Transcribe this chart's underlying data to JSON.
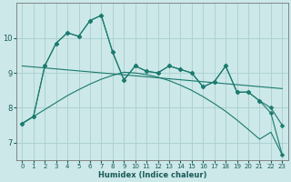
{
  "xlabel": "Humidex (Indice chaleur)",
  "x_ticks": [
    0,
    1,
    2,
    3,
    4,
    5,
    6,
    7,
    8,
    9,
    10,
    11,
    12,
    13,
    14,
    15,
    16,
    17,
    18,
    19,
    20,
    21,
    22,
    23
  ],
  "y_ticks": [
    7,
    8,
    9,
    10
  ],
  "xlim": [
    -0.5,
    23.5
  ],
  "ylim": [
    6.5,
    11.0
  ],
  "bg_color": "#cce8e8",
  "grid_color": "#aacece",
  "line_color": "#1a7a6e",
  "lines": [
    {
      "x": [
        0,
        1,
        2,
        3,
        4,
        5,
        6,
        7,
        8,
        9,
        10,
        11,
        12,
        13,
        14,
        15,
        16,
        17,
        18,
        19,
        20,
        21,
        22,
        23
      ],
      "y": [
        7.55,
        7.75,
        9.2,
        9.85,
        10.15,
        10.05,
        10.5,
        10.65,
        9.6,
        8.8,
        9.2,
        9.05,
        9.0,
        9.2,
        9.1,
        9.0,
        8.6,
        8.75,
        9.2,
        8.45,
        8.45,
        8.2,
        8.0,
        7.5
      ],
      "marker": "D",
      "markersize": 2.5
    },
    {
      "x": [
        0,
        1,
        2,
        3,
        4,
        5,
        6,
        7,
        8,
        9,
        10,
        11,
        12,
        13,
        14,
        15,
        16,
        17,
        18,
        19,
        20,
        21,
        22,
        23
      ],
      "y": [
        7.55,
        7.75,
        9.2,
        9.85,
        10.15,
        10.05,
        10.5,
        10.65,
        9.6,
        8.8,
        9.2,
        9.05,
        9.0,
        9.2,
        9.1,
        9.0,
        8.6,
        8.75,
        9.2,
        8.45,
        8.45,
        8.2,
        7.85,
        6.65
      ],
      "marker": "D",
      "markersize": 2.5
    },
    {
      "x": [
        0,
        23
      ],
      "y": [
        9.2,
        8.55
      ],
      "marker": null,
      "markersize": 0
    },
    {
      "x": [
        0,
        1,
        2,
        3,
        4,
        5,
        6,
        7,
        8,
        9,
        10,
        11,
        12,
        13,
        14,
        15,
        16,
        17,
        18,
        19,
        20,
        21,
        22,
        23
      ],
      "y": [
        7.55,
        7.75,
        7.95,
        8.15,
        8.35,
        8.52,
        8.68,
        8.82,
        8.93,
        9.02,
        9.0,
        8.95,
        8.88,
        8.78,
        8.65,
        8.5,
        8.32,
        8.12,
        7.9,
        7.65,
        7.38,
        7.1,
        7.3,
        6.65
      ],
      "marker": null,
      "markersize": 0
    }
  ]
}
